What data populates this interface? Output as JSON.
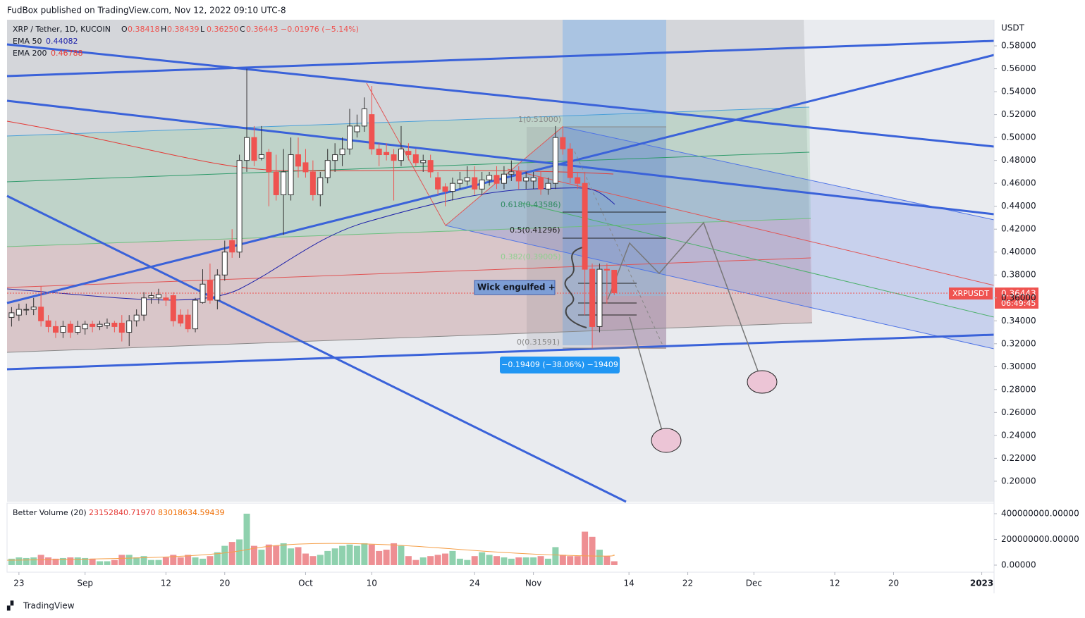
{
  "header": "FudBox published on TradingView.com, Nov 12, 2022 09:10 UTC-8",
  "footer": "TradingView",
  "chart_data": [
    {
      "type": "candlestick",
      "title": "XRP / Tether, 1D, KUCOIN",
      "legend_values": [
        {
          "label": "O",
          "value": 0.38418
        },
        {
          "label": "H",
          "value": 0.38439
        },
        {
          "label": "L",
          "value": {
            "value": 0.3625,
            "label": "0.36250"
          }
        },
        {
          "label": "C",
          "value": 0.36443
        }
      ],
      "change": "−0.01976 (−5.14%)",
      "indicators": [
        {
          "name": "EMA 50",
          "value": 0.44082,
          "color": "#1e22aa"
        },
        {
          "name": "EMA 200",
          "value": 0.46788,
          "color": "#e53935"
        }
      ],
      "currency": "USDT",
      "price_label": {
        "symbol": "XRPUSDT",
        "value": 0.36443,
        "countdown": "06:49:45"
      },
      "fib_labels": [
        "1(0.51000)",
        "0.618(0.43586)",
        "0.5(0.41296)",
        "0.382(0.39005)",
        "0(0.31591)"
      ],
      "annotation": "Wick engulfed +",
      "measure": "−0.19409 (−38.06%) −19409",
      "up_color": "#ffffff",
      "down_color": "#ef5350",
      "wick_color": "#333333",
      "x": [
        "2022-08-22",
        "2022-08-23",
        "2022-08-24",
        "2022-08-25",
        "2022-08-26",
        "2022-08-27",
        "2022-08-28",
        "2022-08-29",
        "2022-08-30",
        "2022-08-31",
        "2022-09-01",
        "2022-09-02",
        "2022-09-03",
        "2022-09-04",
        "2022-09-05",
        "2022-09-06",
        "2022-09-07",
        "2022-09-08",
        "2022-09-09",
        "2022-09-10",
        "2022-09-11",
        "2022-09-12",
        "2022-09-13",
        "2022-09-14",
        "2022-09-15",
        "2022-09-16",
        "2022-09-17",
        "2022-09-18",
        "2022-09-19",
        "2022-09-20",
        "2022-09-21",
        "2022-09-22",
        "2022-09-23",
        "2022-09-24",
        "2022-09-25",
        "2022-09-26",
        "2022-09-27",
        "2022-09-28",
        "2022-09-29",
        "2022-09-30",
        "2022-10-01",
        "2022-10-02",
        "2022-10-03",
        "2022-10-04",
        "2022-10-05",
        "2022-10-06",
        "2022-10-07",
        "2022-10-08",
        "2022-10-09",
        "2022-10-10",
        "2022-10-11",
        "2022-10-12",
        "2022-10-13",
        "2022-10-14",
        "2022-10-15",
        "2022-10-16",
        "2022-10-17",
        "2022-10-18",
        "2022-10-19",
        "2022-10-20",
        "2022-10-21",
        "2022-10-22",
        "2022-10-23",
        "2022-10-24",
        "2022-10-25",
        "2022-10-26",
        "2022-10-27",
        "2022-10-28",
        "2022-10-29",
        "2022-10-30",
        "2022-10-31",
        "2022-11-01",
        "2022-11-02",
        "2022-11-03",
        "2022-11-04",
        "2022-11-05",
        "2022-11-06",
        "2022-11-07",
        "2022-11-08",
        "2022-11-09",
        "2022-11-10",
        "2022-11-11",
        "2022-11-12"
      ],
      "open": [
        0.343,
        0.345,
        0.35,
        0.35,
        0.352,
        0.34,
        0.335,
        0.33,
        0.337,
        0.33,
        0.333,
        0.337,
        0.335,
        0.336,
        0.338,
        0.338,
        0.33,
        0.34,
        0.345,
        0.36,
        0.36,
        0.36,
        0.362,
        0.345,
        0.345,
        0.333,
        0.356,
        0.375,
        0.358,
        0.38,
        0.41,
        0.4,
        0.48,
        0.5,
        0.482,
        0.487,
        0.47,
        0.45,
        0.45,
        0.485,
        0.478,
        0.47,
        0.45,
        0.465,
        0.48,
        0.485,
        0.49,
        0.505,
        0.51,
        0.52,
        0.49,
        0.487,
        0.485,
        0.48,
        0.488,
        0.485,
        0.478,
        0.48,
        0.465,
        0.457,
        0.453,
        0.46,
        0.462,
        0.465,
        0.455,
        0.463,
        0.467,
        0.46,
        0.468,
        0.47,
        0.462,
        0.462,
        0.465,
        0.455,
        0.46,
        0.5,
        0.49,
        0.465,
        0.46,
        0.385,
        0.335,
        0.385,
        0.38418
      ],
      "high": [
        0.352,
        0.355,
        0.355,
        0.36,
        0.37,
        0.345,
        0.34,
        0.34,
        0.34,
        0.34,
        0.34,
        0.34,
        0.34,
        0.342,
        0.34,
        0.345,
        0.345,
        0.35,
        0.365,
        0.365,
        0.368,
        0.365,
        0.365,
        0.35,
        0.35,
        0.36,
        0.385,
        0.39,
        0.385,
        0.41,
        0.42,
        0.485,
        0.56,
        0.51,
        0.51,
        0.49,
        0.485,
        0.49,
        0.5,
        0.5,
        0.49,
        0.48,
        0.47,
        0.49,
        0.495,
        0.5,
        0.525,
        0.52,
        0.535,
        0.545,
        0.495,
        0.495,
        0.49,
        0.51,
        0.495,
        0.49,
        0.485,
        0.485,
        0.47,
        0.46,
        0.465,
        0.47,
        0.475,
        0.475,
        0.47,
        0.47,
        0.475,
        0.475,
        0.48,
        0.475,
        0.47,
        0.47,
        0.47,
        0.465,
        0.51,
        0.51,
        0.495,
        0.47,
        0.47,
        0.39,
        0.39,
        0.39,
        0.38439
      ],
      "low": [
        0.335,
        0.34,
        0.345,
        0.345,
        0.335,
        0.33,
        0.325,
        0.325,
        0.325,
        0.328,
        0.328,
        0.33,
        0.332,
        0.333,
        0.33,
        0.322,
        0.318,
        0.335,
        0.34,
        0.355,
        0.355,
        0.353,
        0.335,
        0.335,
        0.33,
        0.33,
        0.355,
        0.355,
        0.35,
        0.375,
        0.395,
        0.395,
        0.47,
        0.475,
        0.48,
        0.44,
        0.445,
        0.415,
        0.445,
        0.465,
        0.465,
        0.445,
        0.44,
        0.46,
        0.47,
        0.475,
        0.485,
        0.5,
        0.505,
        0.485,
        0.475,
        0.48,
        0.445,
        0.475,
        0.48,
        0.475,
        0.47,
        0.465,
        0.45,
        0.44,
        0.445,
        0.455,
        0.458,
        0.45,
        0.45,
        0.458,
        0.455,
        0.455,
        0.462,
        0.455,
        0.455,
        0.455,
        0.45,
        0.45,
        0.455,
        0.485,
        0.46,
        0.455,
        0.345,
        0.31591,
        0.33,
        0.355,
        0.3625
      ],
      "close": [
        0.347,
        0.35,
        0.35,
        0.352,
        0.34,
        0.335,
        0.33,
        0.335,
        0.33,
        0.335,
        0.337,
        0.335,
        0.337,
        0.338,
        0.335,
        0.33,
        0.34,
        0.345,
        0.36,
        0.362,
        0.363,
        0.358,
        0.34,
        0.338,
        0.333,
        0.358,
        0.372,
        0.358,
        0.38,
        0.4,
        0.4,
        0.48,
        0.5,
        0.48,
        0.485,
        0.47,
        0.45,
        0.47,
        0.485,
        0.475,
        0.47,
        0.45,
        0.465,
        0.48,
        0.485,
        0.49,
        0.51,
        0.51,
        0.525,
        0.49,
        0.485,
        0.485,
        0.48,
        0.49,
        0.485,
        0.478,
        0.48,
        0.47,
        0.455,
        0.453,
        0.46,
        0.463,
        0.465,
        0.455,
        0.463,
        0.467,
        0.46,
        0.468,
        0.47,
        0.462,
        0.465,
        0.465,
        0.455,
        0.46,
        0.5,
        0.49,
        0.465,
        0.46,
        0.385,
        0.335,
        0.385,
        0.38419,
        0.36443
      ],
      "xlim": [
        "2022-08-21",
        "2023-01-02"
      ],
      "xticks": [
        {
          "value": "2022-08-23",
          "label": "23"
        },
        {
          "value": "2022-09-01",
          "label": "Sep"
        },
        {
          "value": "2022-09-12",
          "label": "12"
        },
        {
          "value": "2022-09-20",
          "label": "20"
        },
        {
          "value": "2022-10-01",
          "label": "Oct"
        },
        {
          "value": "2022-10-10",
          "label": "10"
        },
        {
          "value": "2022-10-24",
          "label": "24"
        },
        {
          "value": "2022-11-01",
          "label": "Nov"
        },
        {
          "value": "2022-11-14",
          "label": "14"
        },
        {
          "value": "2022-11-22",
          "label": "22"
        },
        {
          "value": "2022-12-01",
          "label": "Dec"
        },
        {
          "value": "2022-12-12",
          "label": "12"
        },
        {
          "value": "2022-12-20",
          "label": "20"
        },
        {
          "value": "2023-01-01",
          "label": "2023"
        }
      ],
      "ylim": [
        0.1821,
        0.6028
      ],
      "yticks": [
        {
          "value": 0.58,
          "label": "0.58000"
        },
        {
          "value": 0.56,
          "label": "0.56000"
        },
        {
          "value": 0.54,
          "label": "0.54000"
        },
        {
          "value": 0.52,
          "label": "0.52000"
        },
        {
          "value": 0.5,
          "label": "0.50000"
        },
        {
          "value": 0.48,
          "label": "0.48000"
        },
        {
          "value": 0.46,
          "label": "0.46000"
        },
        {
          "value": 0.44,
          "label": "0.44000"
        },
        {
          "value": 0.42,
          "label": "0.42000"
        },
        {
          "value": 0.4,
          "label": "0.40000"
        },
        {
          "value": 0.38,
          "label": "0.38000"
        },
        {
          "value": 0.36,
          "label": "0.36000"
        },
        {
          "value": 0.34,
          "label": "0.34000"
        },
        {
          "value": 0.32,
          "label": "0.32000"
        },
        {
          "value": 0.3,
          "label": "0.30000"
        },
        {
          "value": 0.28,
          "label": "0.28000"
        },
        {
          "value": 0.26,
          "label": "0.26000"
        },
        {
          "value": 0.24,
          "label": "0.24000"
        },
        {
          "value": 0.22,
          "label": "0.22000"
        },
        {
          "value": 0.2,
          "label": "0.20000"
        }
      ]
    },
    {
      "type": "bar",
      "title": "Better Volume (20)",
      "legend_values": [
        {
          "value": 23152840.7197,
          "label": "23152840.71970",
          "color": "#e53935"
        },
        {
          "value": 83018634.59439,
          "label": "83018634.59439",
          "color": "#ef6c00"
        }
      ],
      "up_color": "#8fd1ae",
      "down_color": "#ee8f93",
      "values": [
        50000000,
        60000000,
        55000000,
        60000000,
        80000000,
        60000000,
        50000000,
        55000000,
        60000000,
        60000000,
        55000000,
        50000000,
        30000000,
        30000000,
        40000000,
        80000000,
        80000000,
        60000000,
        70000000,
        40000000,
        40000000,
        60000000,
        80000000,
        60000000,
        80000000,
        60000000,
        50000000,
        70000000,
        100000000,
        150000000,
        180000000,
        200000000,
        400000000,
        150000000,
        120000000,
        160000000,
        150000000,
        170000000,
        130000000,
        140000000,
        90000000,
        70000000,
        80000000,
        110000000,
        130000000,
        150000000,
        160000000,
        150000000,
        170000000,
        160000000,
        110000000,
        120000000,
        170000000,
        150000000,
        70000000,
        40000000,
        60000000,
        70000000,
        80000000,
        90000000,
        110000000,
        50000000,
        40000000,
        70000000,
        100000000,
        80000000,
        70000000,
        60000000,
        50000000,
        60000000,
        60000000,
        60000000,
        70000000,
        50000000,
        140000000,
        80000000,
        70000000,
        70000000,
        260000000,
        220000000,
        120000000,
        70000000,
        30000000
      ],
      "ylim": [
        -55000000,
        482000000
      ],
      "yticks": [
        {
          "value": 400000000,
          "label": "400000000.00000"
        },
        {
          "value": 200000000,
          "label": "200000000.00000"
        },
        {
          "value": 0,
          "label": "0.00000"
        }
      ]
    }
  ]
}
